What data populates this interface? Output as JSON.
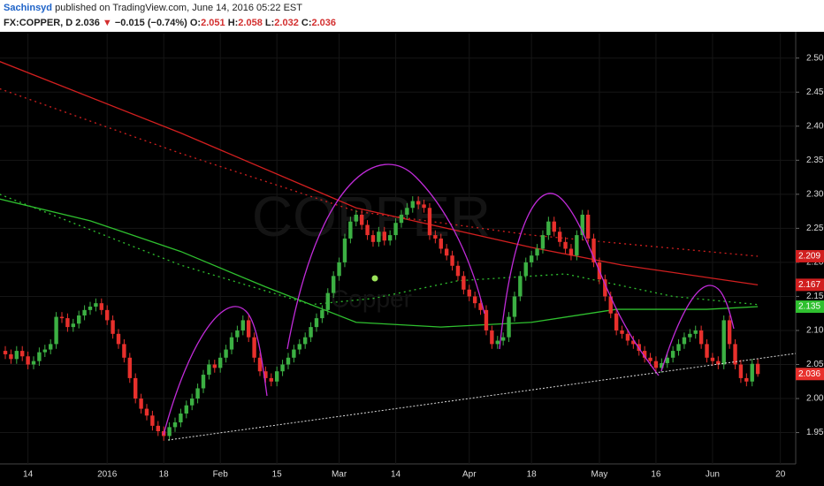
{
  "header": {
    "author": "Sachinsyd",
    "published": "published on TradingView.com, June 14, 2016 05:22 EST",
    "symbol": "FX:COPPER, D",
    "last": "2.036",
    "arrow": "▼",
    "change": "−0.015 (−0.74%)",
    "o_label": "O:",
    "open": "2.051",
    "h_label": "H:",
    "high": "2.058",
    "l_label": "L:",
    "low": "2.032",
    "c_label": "C:",
    "close": "2.036"
  },
  "chart_data": {
    "type": "candlestick",
    "watermark": "COPPER",
    "watermark_sub": "Copper",
    "up_color": "#3cb043",
    "down_color": "#e8302c",
    "open": [
      2.07,
      2.065,
      2.058,
      2.07,
      2.062,
      2.05,
      2.055,
      2.068,
      2.072,
      2.08,
      2.12,
      2.118,
      2.105,
      2.11,
      2.122,
      2.13,
      2.135,
      2.14,
      2.13,
      2.115,
      2.095,
      2.08,
      2.06,
      2.03,
      2.0,
      1.985,
      1.975,
      1.96,
      1.952,
      1.945,
      1.958,
      1.965,
      1.978,
      1.99,
      2.0,
      2.015,
      2.035,
      2.05,
      2.045,
      2.06,
      2.072,
      2.09,
      2.1,
      2.115,
      2.09,
      2.06,
      2.04,
      2.03,
      2.025,
      2.04,
      2.05,
      2.06,
      2.072,
      2.08,
      2.09,
      2.105,
      2.118,
      2.13,
      2.155,
      2.18,
      2.2,
      2.235,
      2.26,
      2.27,
      2.255,
      2.24,
      2.23,
      2.245,
      2.232,
      2.24,
      2.258,
      2.27,
      2.28,
      2.29,
      2.285,
      2.28,
      2.24,
      2.235,
      2.22,
      2.21,
      2.195,
      2.18,
      2.16,
      2.15,
      2.14,
      2.13,
      2.1,
      2.08,
      2.085,
      2.09,
      2.12,
      2.15,
      2.18,
      2.2,
      2.21,
      2.22,
      2.24,
      2.26,
      2.245,
      2.23,
      2.22,
      2.21,
      2.24,
      2.27,
      2.235,
      2.2,
      2.175,
      2.15,
      2.125,
      2.1,
      2.095,
      2.085,
      2.08,
      2.07,
      2.06,
      2.055,
      2.045,
      2.052,
      2.06,
      2.07,
      2.08,
      2.09,
      2.095,
      2.1,
      2.08,
      2.06,
      2.055,
      2.05,
      2.115,
      2.08,
      2.05,
      2.03,
      2.025,
      2.051
    ],
    "high": [
      2.077,
      2.072,
      2.077,
      2.077,
      2.069,
      2.062,
      2.075,
      2.079,
      2.087,
      2.127,
      2.127,
      2.125,
      2.117,
      2.129,
      2.137,
      2.142,
      2.147,
      2.147,
      2.137,
      2.122,
      2.102,
      2.087,
      2.067,
      2.037,
      2.007,
      1.992,
      1.982,
      1.967,
      1.959,
      1.965,
      1.972,
      1.985,
      1.997,
      2.007,
      2.022,
      2.042,
      2.057,
      2.057,
      2.067,
      2.079,
      2.097,
      2.107,
      2.122,
      2.122,
      2.097,
      2.067,
      2.047,
      2.037,
      2.047,
      2.057,
      2.067,
      2.079,
      2.087,
      2.097,
      2.112,
      2.125,
      2.137,
      2.162,
      2.187,
      2.207,
      2.242,
      2.267,
      2.277,
      2.277,
      2.262,
      2.247,
      2.252,
      2.252,
      2.247,
      2.265,
      2.277,
      2.287,
      2.297,
      2.297,
      2.292,
      2.287,
      2.247,
      2.242,
      2.227,
      2.217,
      2.202,
      2.187,
      2.167,
      2.157,
      2.147,
      2.137,
      2.107,
      2.092,
      2.097,
      2.127,
      2.157,
      2.187,
      2.207,
      2.217,
      2.227,
      2.247,
      2.267,
      2.267,
      2.252,
      2.237,
      2.227,
      2.247,
      2.277,
      2.277,
      2.242,
      2.207,
      2.182,
      2.157,
      2.132,
      2.107,
      2.102,
      2.092,
      2.087,
      2.077,
      2.067,
      2.062,
      2.059,
      2.067,
      2.077,
      2.087,
      2.097,
      2.102,
      2.107,
      2.107,
      2.087,
      2.067,
      2.062,
      2.122,
      2.122,
      2.087,
      2.057,
      2.037,
      2.058,
      2.058
    ],
    "low": [
      2.058,
      2.051,
      2.051,
      2.055,
      2.043,
      2.043,
      2.048,
      2.061,
      2.065,
      2.073,
      2.111,
      2.098,
      2.098,
      2.103,
      2.115,
      2.123,
      2.128,
      2.123,
      2.108,
      2.088,
      2.073,
      2.053,
      2.023,
      1.993,
      1.978,
      1.968,
      1.953,
      1.945,
      1.938,
      1.938,
      1.951,
      1.958,
      1.971,
      1.983,
      1.993,
      2.008,
      2.028,
      2.038,
      2.038,
      2.053,
      2.065,
      2.083,
      2.093,
      2.083,
      2.053,
      2.033,
      2.023,
      2.018,
      2.018,
      2.033,
      2.043,
      2.053,
      2.065,
      2.073,
      2.083,
      2.098,
      2.111,
      2.123,
      2.148,
      2.173,
      2.193,
      2.228,
      2.253,
      2.248,
      2.233,
      2.223,
      2.223,
      2.225,
      2.225,
      2.233,
      2.251,
      2.263,
      2.273,
      2.278,
      2.273,
      2.233,
      2.228,
      2.213,
      2.203,
      2.188,
      2.173,
      2.153,
      2.143,
      2.133,
      2.123,
      2.093,
      2.073,
      2.073,
      2.078,
      2.083,
      2.113,
      2.143,
      2.173,
      2.193,
      2.203,
      2.213,
      2.233,
      2.238,
      2.223,
      2.213,
      2.203,
      2.203,
      2.233,
      2.228,
      2.193,
      2.168,
      2.143,
      2.118,
      2.093,
      2.088,
      2.078,
      2.073,
      2.063,
      2.053,
      2.048,
      2.038,
      2.038,
      2.045,
      2.053,
      2.063,
      2.073,
      2.083,
      2.088,
      2.073,
      2.053,
      2.048,
      2.043,
      2.043,
      2.073,
      2.043,
      2.023,
      2.018,
      2.018,
      2.032
    ],
    "close": [
      2.065,
      2.058,
      2.07,
      2.062,
      2.05,
      2.055,
      2.068,
      2.072,
      2.08,
      2.12,
      2.118,
      2.105,
      2.11,
      2.122,
      2.13,
      2.135,
      2.14,
      2.13,
      2.115,
      2.095,
      2.08,
      2.06,
      2.03,
      2.0,
      1.985,
      1.975,
      1.96,
      1.952,
      1.945,
      1.958,
      1.965,
      1.978,
      1.99,
      2.0,
      2.015,
      2.035,
      2.05,
      2.045,
      2.06,
      2.072,
      2.09,
      2.1,
      2.115,
      2.09,
      2.06,
      2.04,
      2.03,
      2.025,
      2.04,
      2.05,
      2.06,
      2.072,
      2.08,
      2.09,
      2.105,
      2.118,
      2.13,
      2.155,
      2.18,
      2.2,
      2.235,
      2.26,
      2.27,
      2.255,
      2.24,
      2.23,
      2.245,
      2.232,
      2.24,
      2.258,
      2.27,
      2.28,
      2.29,
      2.285,
      2.28,
      2.24,
      2.235,
      2.22,
      2.21,
      2.195,
      2.18,
      2.16,
      2.15,
      2.14,
      2.13,
      2.1,
      2.08,
      2.085,
      2.09,
      2.12,
      2.15,
      2.18,
      2.2,
      2.21,
      2.22,
      2.24,
      2.26,
      2.245,
      2.23,
      2.22,
      2.21,
      2.24,
      2.27,
      2.235,
      2.2,
      2.175,
      2.15,
      2.125,
      2.1,
      2.095,
      2.085,
      2.08,
      2.07,
      2.06,
      2.055,
      2.045,
      2.052,
      2.06,
      2.07,
      2.08,
      2.09,
      2.095,
      2.1,
      2.08,
      2.06,
      2.055,
      2.05,
      2.115,
      2.08,
      2.05,
      2.03,
      2.025,
      2.051,
      2.036
    ],
    "close_tag_color": "#e8302c",
    "lines": [
      {
        "color": "#d11f1f",
        "dashed": false,
        "tag": true,
        "x": [
          -1,
          31,
          62,
          93,
          109,
          133
        ],
        "values": [
          2.495,
          2.39,
          2.28,
          2.222,
          2.196,
          2.167
        ]
      },
      {
        "color": "#d11f1f",
        "dashed": true,
        "tag": true,
        "x": [
          -1,
          31,
          62,
          93,
          133
        ],
        "values": [
          2.455,
          2.36,
          2.275,
          2.24,
          2.209
        ]
      },
      {
        "color": "#2fc02f",
        "dashed": false,
        "tag": true,
        "x": [
          -1,
          15,
          31,
          46,
          62,
          77,
          93,
          108,
          124,
          133
        ],
        "values": [
          2.293,
          2.261,
          2.216,
          2.164,
          2.112,
          2.105,
          2.112,
          2.131,
          2.131,
          2.135
        ]
      },
      {
        "color": "#2fc02f",
        "dashed": true,
        "tag": false,
        "x": [
          -1,
          31,
          54,
          65,
          80,
          99,
          118,
          133
        ],
        "values": [
          2.3,
          2.196,
          2.138,
          2.147,
          2.173,
          2.183,
          2.15,
          2.138
        ]
      }
    ],
    "xlim": [
      -0.94,
      139.7
    ],
    "ylim": [
      1.904,
      2.536
    ],
    "yticks": [
      {
        "value": 1.95,
        "label": "1.950"
      },
      {
        "value": 2.0,
        "label": "2.000"
      },
      {
        "value": 2.05,
        "label": "2.050"
      },
      {
        "value": 2.1,
        "label": "2.100"
      },
      {
        "value": 2.15,
        "label": "2.150"
      },
      {
        "value": 2.2,
        "label": "2.200"
      },
      {
        "value": 2.25,
        "label": "2.250"
      },
      {
        "value": 2.3,
        "label": "2.300"
      },
      {
        "value": 2.35,
        "label": "2.350"
      },
      {
        "value": 2.4,
        "label": "2.400"
      },
      {
        "value": 2.45,
        "label": "2.450"
      },
      {
        "value": 2.5,
        "label": "2.500"
      }
    ],
    "xticks": [
      {
        "value": 4,
        "label": "14"
      },
      {
        "value": 18,
        "label": "2016"
      },
      {
        "value": 28,
        "label": "18"
      },
      {
        "value": 38,
        "label": "Feb"
      },
      {
        "value": 48,
        "label": "15"
      },
      {
        "value": 59,
        "label": "Mar"
      },
      {
        "value": 69,
        "label": "14"
      },
      {
        "value": 82,
        "label": "Apr"
      },
      {
        "value": 93,
        "label": "18"
      },
      {
        "value": 105,
        "label": "May"
      },
      {
        "value": 115,
        "label": "16"
      },
      {
        "value": 125,
        "label": "Jun"
      },
      {
        "value": 137,
        "label": "20"
      }
    ],
    "grid": true
  }
}
